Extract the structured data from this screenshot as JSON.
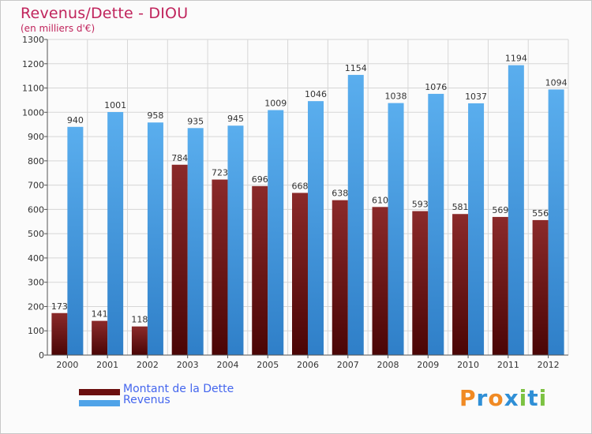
{
  "header": {
    "title": "Revenus/Dette - DIOU",
    "subtitle": "(en milliers d'€)"
  },
  "chart_data": {
    "type": "bar",
    "categories": [
      "2000",
      "2001",
      "2002",
      "2003",
      "2004",
      "2005",
      "2006",
      "2007",
      "2008",
      "2009",
      "2010",
      "2011",
      "2012"
    ],
    "series": [
      {
        "name": "Montant de la Dette",
        "color": "#8b1c1c",
        "values": [
          173,
          141,
          118,
          784,
          723,
          696,
          668,
          638,
          610,
          593,
          581,
          569,
          556
        ]
      },
      {
        "name": "Revenus",
        "color": "#4fa3e8",
        "values": [
          940,
          1001,
          958,
          935,
          945,
          1009,
          1046,
          1154,
          1038,
          1076,
          1037,
          1194,
          1094
        ]
      }
    ],
    "ylim": [
      0,
      1300
    ],
    "yticks": [
      0,
      100,
      200,
      300,
      400,
      500,
      600,
      700,
      800,
      900,
      1000,
      1100,
      1200,
      1300
    ],
    "grid": true,
    "legend_position": "bottom-left"
  },
  "legend": {
    "items": [
      {
        "label": "Montant de la Dette",
        "color": "#6b0e0e"
      },
      {
        "label": "Revenus",
        "color": "#4fa3e8"
      }
    ]
  },
  "logo": {
    "letters": [
      "P",
      "r",
      "o",
      "x",
      "i",
      "t",
      "i"
    ],
    "colors": [
      "#f08a24",
      "#2f8fd6",
      "#f08a24",
      "#2f8fd6",
      "#7cc242",
      "#2f8fd6",
      "#7cc242"
    ]
  }
}
